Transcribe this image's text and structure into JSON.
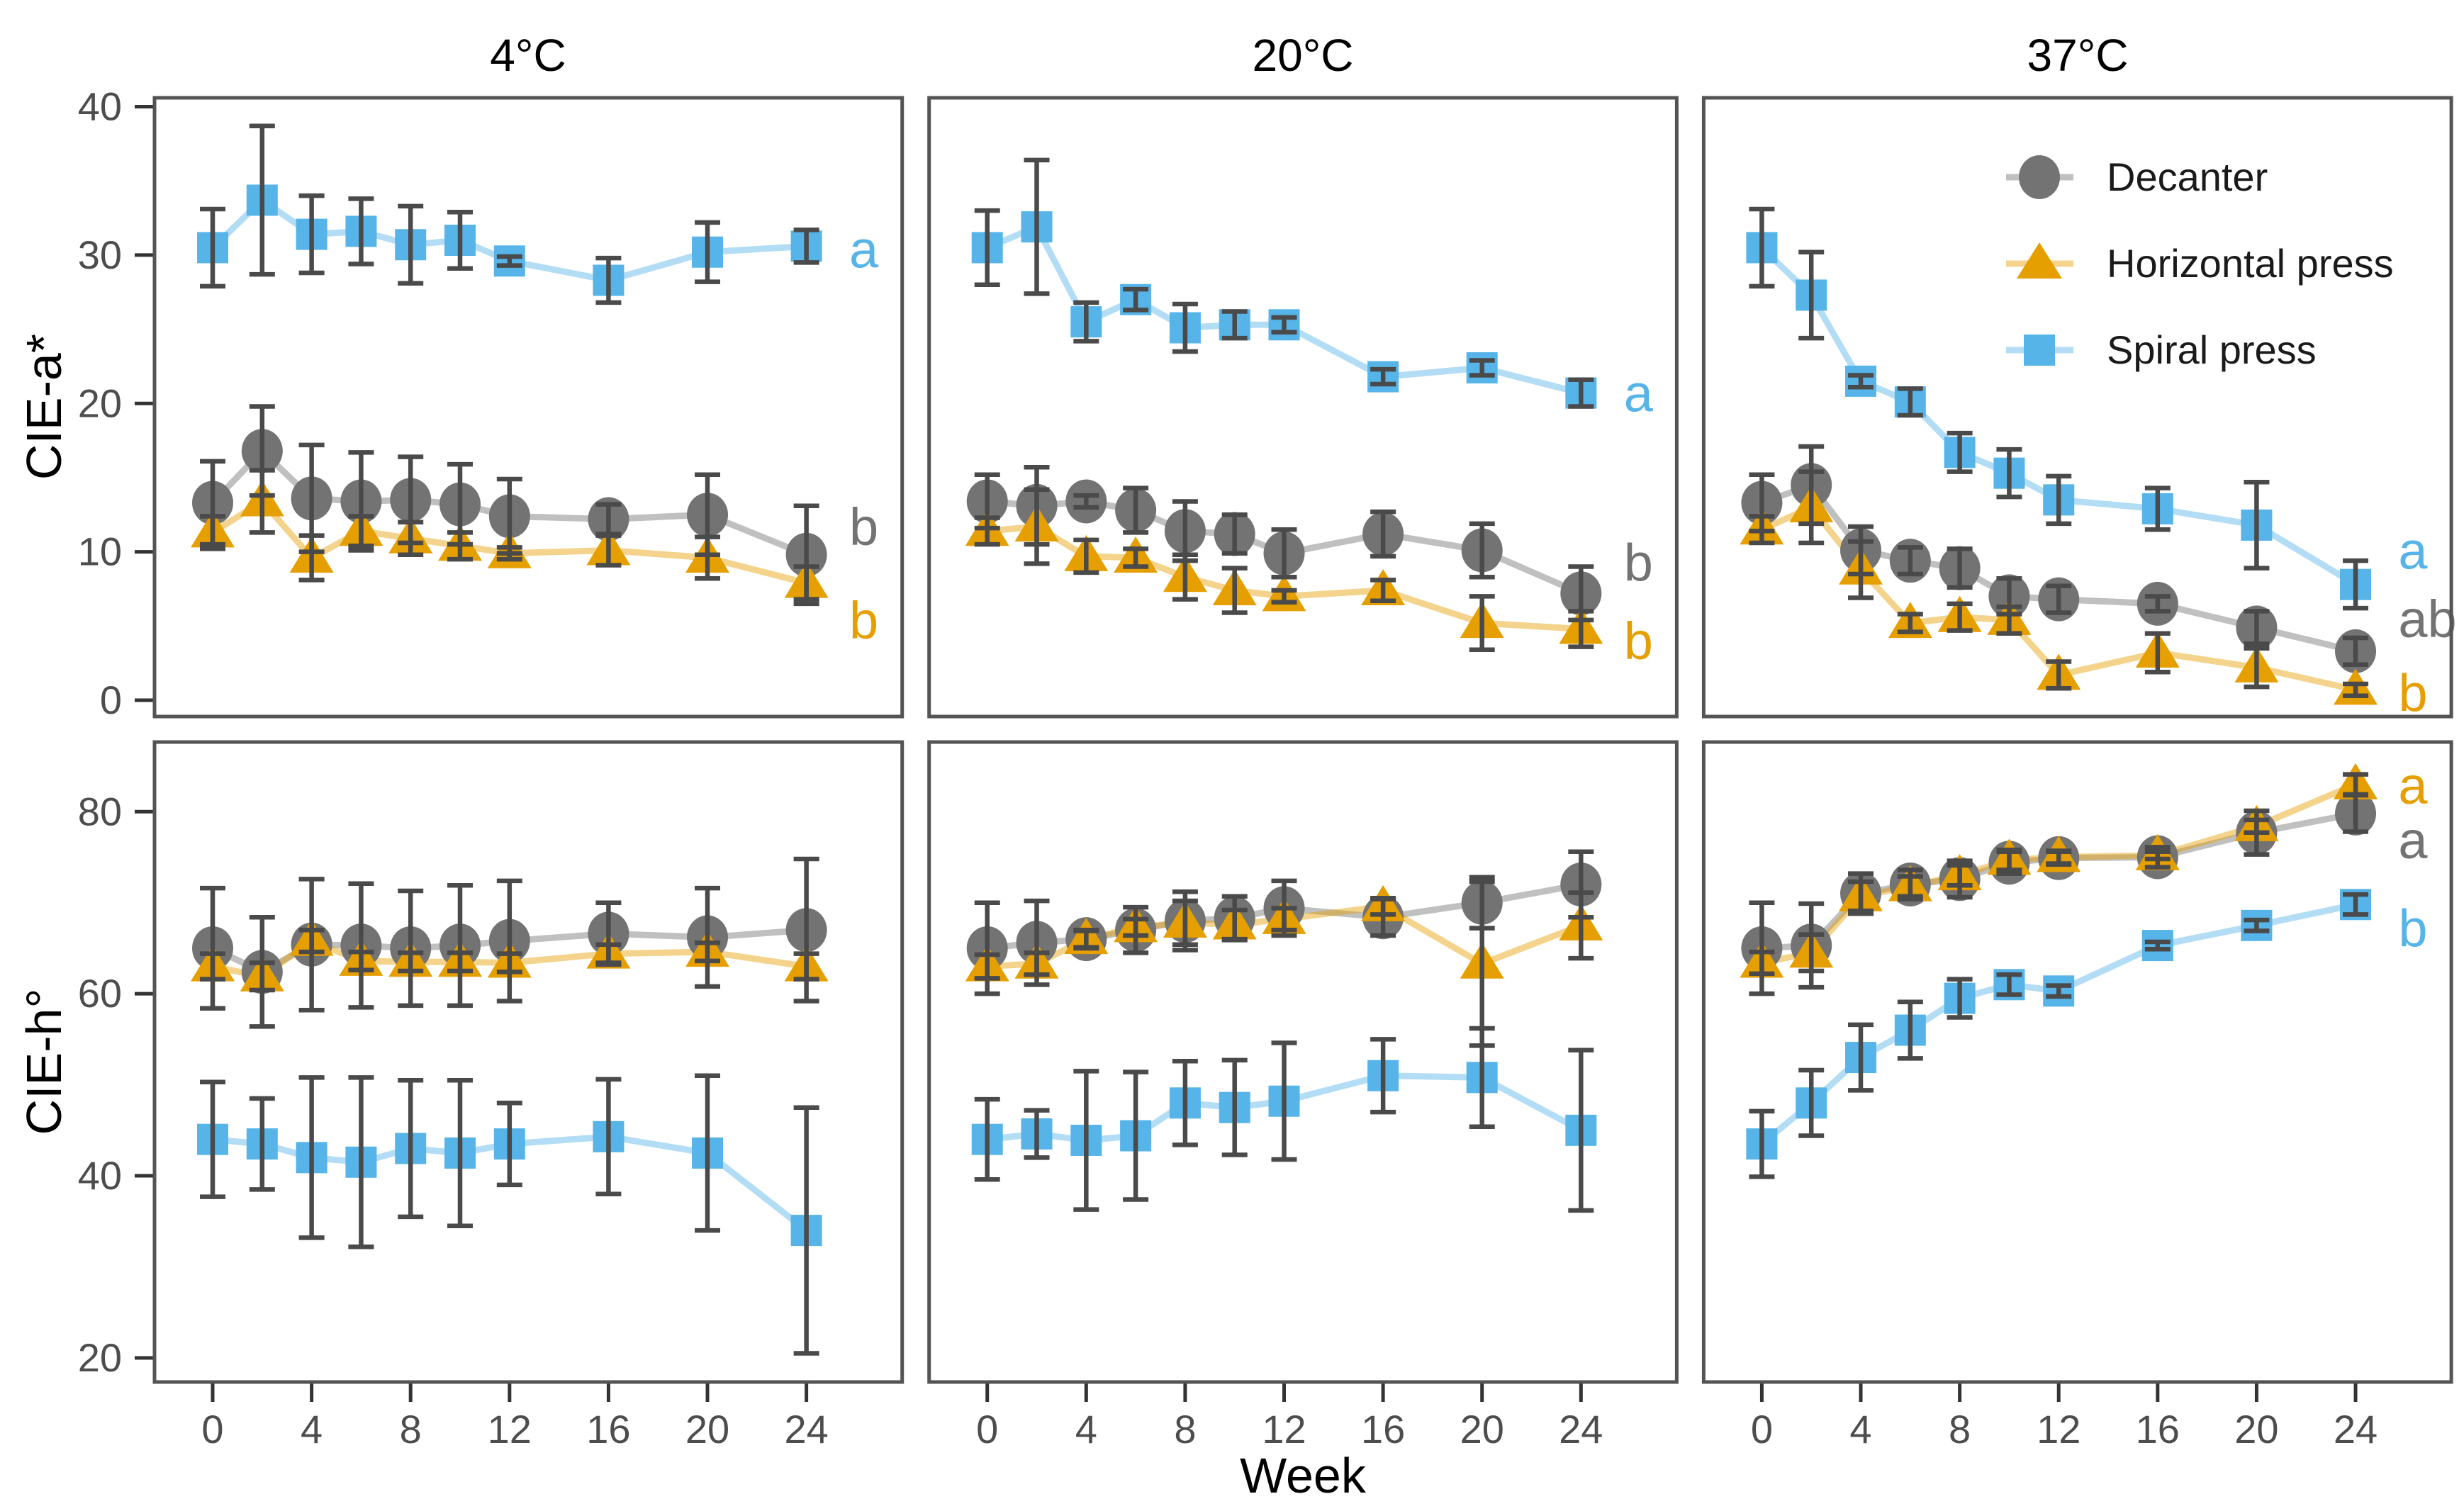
{
  "figure": {
    "x_axis_title": "Week",
    "row_axis_titles": [
      "CIE-a*",
      "CIE-h°"
    ],
    "col_titles": [
      "4°C",
      "20°C",
      "37°C"
    ],
    "x_ticks": [
      0,
      4,
      8,
      12,
      16,
      20,
      24
    ],
    "colors": {
      "decanter": "#737373",
      "horizontal": "#E69F00",
      "spiral": "#56B4E9",
      "error_bar": "#4a4a4a",
      "panel_border": "#545454",
      "tick_label": "#4d4d4d"
    },
    "legend": {
      "items": [
        {
          "id": "decanter",
          "label": "Decanter",
          "marker": "circle-icon"
        },
        {
          "id": "horizontal",
          "label": "Horizontal press",
          "marker": "triangle-icon"
        },
        {
          "id": "spiral",
          "label": "Spiral press",
          "marker": "square-icon"
        }
      ]
    }
  },
  "chart_data": {
    "type": "line",
    "x_label": "Week",
    "x": [
      0,
      2,
      4,
      6,
      8,
      10,
      12,
      16,
      20,
      24
    ],
    "error_bars": "plus-minus-sd",
    "legend_position": "inside-top-right-panel",
    "grid": "off",
    "panels": [
      {
        "row_label": "CIE-a*",
        "col_label": "4°C",
        "ylim": [
          0,
          40
        ],
        "yticks": [
          0,
          10,
          20,
          30,
          40
        ],
        "series": [
          {
            "id": "decanter",
            "name": "Decanter",
            "mean": [
              13.3,
              16.8,
              13.6,
              13.4,
              13.5,
              13.2,
              12.4,
              12.2,
              12.5,
              9.8
            ],
            "sd": [
              2.8,
              3.0,
              3.6,
              3.3,
              2.9,
              2.7,
              2.5,
              1.0,
              2.7,
              3.3
            ]
          },
          {
            "id": "horizontal",
            "name": "Horizontal press",
            "mean": [
              11.3,
              13.4,
              9.6,
              11.4,
              10.9,
              10.4,
              9.9,
              10.1,
              9.6,
              7.9
            ],
            "sd": [
              1.1,
              2.1,
              1.5,
              1.0,
              1.1,
              0.9,
              0.4,
              1.0,
              1.4,
              1.1
            ]
          },
          {
            "id": "spiral",
            "name": "Spiral press",
            "mean": [
              30.5,
              33.7,
              31.4,
              31.6,
              30.7,
              31.0,
              29.6,
              28.3,
              30.2,
              30.6
            ],
            "sd": [
              2.6,
              5.0,
              2.6,
              2.2,
              2.6,
              1.9,
              0.3,
              1.5,
              2.0,
              1.1
            ]
          }
        ],
        "sig_letters": [
          {
            "label": "a",
            "series": "spiral",
            "y": 30.4
          },
          {
            "label": "b",
            "series": "decanter",
            "y": 11.7
          },
          {
            "label": "b",
            "series": "horizontal",
            "y": 5.4
          }
        ]
      },
      {
        "row_label": "CIE-a*",
        "col_label": "20°C",
        "ylim": [
          0,
          40
        ],
        "yticks": [
          0,
          10,
          20,
          30,
          40
        ],
        "series": [
          {
            "id": "decanter",
            "name": "Decanter",
            "mean": [
              13.4,
              13.1,
              13.4,
              12.8,
              11.4,
              11.2,
              9.9,
              11.2,
              10.1,
              7.2
            ],
            "sd": [
              1.8,
              2.6,
              0.4,
              1.5,
              2.0,
              1.3,
              1.6,
              1.5,
              1.8,
              1.8
            ]
          },
          {
            "id": "horizontal",
            "name": "Horizontal press",
            "mean": [
              11.4,
              11.7,
              9.7,
              9.6,
              8.3,
              7.4,
              7.0,
              7.4,
              5.2,
              4.8
            ],
            "sd": [
              0.9,
              2.5,
              1.1,
              0.6,
              1.5,
              1.5,
              0.4,
              0.7,
              1.8,
              1.2
            ]
          },
          {
            "id": "spiral",
            "name": "Spiral press",
            "mean": [
              30.5,
              31.9,
              25.5,
              27.0,
              25.1,
              25.3,
              25.3,
              21.8,
              22.4,
              20.7
            ],
            "sd": [
              2.5,
              4.5,
              1.3,
              0.7,
              1.6,
              0.9,
              0.5,
              0.5,
              0.5,
              0.9
            ]
          }
        ],
        "sig_letters": [
          {
            "label": "a",
            "series": "spiral",
            "y": 20.7
          },
          {
            "label": "b",
            "series": "decanter",
            "y": 9.3
          },
          {
            "label": "b",
            "series": "horizontal",
            "y": 4.0
          }
        ]
      },
      {
        "row_label": "CIE-a*",
        "col_label": "37°C",
        "ylim": [
          0,
          40
        ],
        "yticks": [
          0,
          10,
          20,
          30,
          40
        ],
        "series": [
          {
            "id": "decanter",
            "name": "Decanter",
            "mean": [
              13.3,
              14.5,
              10.1,
              9.4,
              8.9,
              7.0,
              6.8,
              6.5,
              4.9,
              3.3
            ],
            "sd": [
              1.9,
              2.6,
              1.6,
              0.9,
              1.3,
              1.2,
              0.9,
              0.5,
              1.1,
              0.9
            ]
          },
          {
            "id": "horizontal",
            "name": "Horizontal press",
            "mean": [
              11.5,
              13.0,
              8.8,
              5.2,
              5.6,
              5.4,
              1.7,
              3.2,
              2.2,
              0.7
            ],
            "sd": [
              0.9,
              2.4,
              1.9,
              0.6,
              0.9,
              0.9,
              0.9,
              1.3,
              1.3,
              0.4
            ]
          },
          {
            "id": "spiral",
            "name": "Spiral press",
            "mean": [
              30.5,
              27.3,
              21.5,
              20.1,
              16.7,
              15.3,
              13.5,
              12.9,
              11.8,
              7.8
            ],
            "sd": [
              2.6,
              2.9,
              0.4,
              0.9,
              1.3,
              1.6,
              1.6,
              1.4,
              2.9,
              1.6
            ]
          }
        ],
        "sig_letters": [
          {
            "label": "a",
            "series": "spiral",
            "y": 10.1
          },
          {
            "label": "ab",
            "series": "decanter",
            "y": 5.5
          },
          {
            "label": "b",
            "series": "horizontal",
            "y": 0.5
          }
        ]
      },
      {
        "row_label": "CIE-h°",
        "col_label": "4°C",
        "ylim": [
          20,
          80
        ],
        "yticks": [
          20,
          40,
          60,
          80
        ],
        "series": [
          {
            "id": "decanter",
            "name": "Decanter",
            "mean": [
              65.0,
              62.4,
              65.4,
              65.3,
              65.0,
              65.3,
              65.8,
              66.6,
              66.2,
              67.0
            ],
            "sd": [
              6.6,
              6.0,
              7.2,
              6.8,
              6.3,
              6.6,
              6.6,
              3.4,
              5.4,
              7.8
            ]
          },
          {
            "id": "horizontal",
            "name": "Horizontal press",
            "mean": [
              63.0,
              61.9,
              65.8,
              63.6,
              63.5,
              63.5,
              63.4,
              64.4,
              64.6,
              63.0
            ],
            "sd": [
              1.4,
              1.5,
              1.2,
              1.0,
              1.0,
              1.0,
              1.0,
              1.0,
              1.0,
              1.4
            ]
          },
          {
            "id": "spiral",
            "name": "Spiral press",
            "mean": [
              44.0,
              43.5,
              42.0,
              41.5,
              43.0,
              42.5,
              43.5,
              44.3,
              42.5,
              34.0
            ],
            "sd": [
              6.3,
              5.0,
              8.8,
              9.3,
              7.5,
              8.0,
              4.5,
              6.3,
              8.5,
              13.5
            ]
          }
        ],
        "sig_letters": []
      },
      {
        "row_label": "CIE-h°",
        "col_label": "20°C",
        "ylim": [
          20,
          80
        ],
        "yticks": [
          20,
          40,
          60,
          80
        ],
        "series": [
          {
            "id": "decanter",
            "name": "Decanter",
            "mean": [
              65.0,
              65.6,
              66.0,
              67.0,
              68.0,
              68.3,
              69.4,
              68.4,
              70.0,
              72.0
            ],
            "sd": [
              5.0,
              4.6,
              1.0,
              2.5,
              3.2,
              2.4,
              3.0,
              2.0,
              2.8,
              3.6
            ]
          },
          {
            "id": "horizontal",
            "name": "Horizontal press",
            "mean": [
              63.0,
              63.3,
              66.0,
              67.3,
              67.8,
              67.6,
              68.2,
              69.6,
              63.3,
              67.5
            ],
            "sd": [
              1.3,
              1.2,
              0.9,
              0.9,
              2.4,
              1.6,
              1.2,
              0.9,
              9.0,
              3.6
            ]
          },
          {
            "id": "spiral",
            "name": "Spiral press",
            "mean": [
              44.0,
              44.6,
              43.9,
              44.4,
              48.0,
              47.5,
              48.2,
              51.0,
              50.8,
              45.0
            ],
            "sd": [
              4.4,
              2.6,
              7.6,
              7.0,
              4.6,
              5.2,
              6.4,
              4.0,
              5.4,
              8.8
            ]
          }
        ],
        "sig_letters": []
      },
      {
        "row_label": "CIE-h°",
        "col_label": "37°C",
        "ylim": [
          20,
          80
        ],
        "yticks": [
          20,
          40,
          60,
          80
        ],
        "series": [
          {
            "id": "decanter",
            "name": "Decanter",
            "mean": [
              65.0,
              65.3,
              71.0,
              72.0,
              72.6,
              74.4,
              74.9,
              75.0,
              77.7,
              79.8
            ],
            "sd": [
              5.0,
              4.6,
              2.2,
              1.6,
              2.0,
              1.2,
              0.7,
              1.1,
              2.4,
              2.0
            ]
          },
          {
            "id": "horizontal",
            "name": "Horizontal press",
            "mean": [
              63.4,
              64.5,
              70.7,
              71.8,
              73.0,
              74.7,
              75.0,
              75.2,
              78.4,
              83.0
            ],
            "sd": [
              1.2,
              2.0,
              1.6,
              1.1,
              1.1,
              1.1,
              0.7,
              0.4,
              0.7,
              1.1
            ]
          },
          {
            "id": "spiral",
            "name": "Spiral press",
            "mean": [
              43.5,
              48.0,
              53.0,
              56.0,
              59.5,
              61.0,
              60.3,
              65.3,
              67.5,
              69.8
            ],
            "sd": [
              3.6,
              3.6,
              3.6,
              3.1,
              2.1,
              1.1,
              0.6,
              0.4,
              0.6,
              1.1
            ]
          }
        ],
        "sig_letters": [
          {
            "label": "a",
            "series": "horizontal",
            "y": 82.9
          },
          {
            "label": "a",
            "series": "decanter",
            "y": 76.9
          },
          {
            "label": "b",
            "series": "spiral",
            "y": 67.2
          }
        ]
      }
    ]
  }
}
